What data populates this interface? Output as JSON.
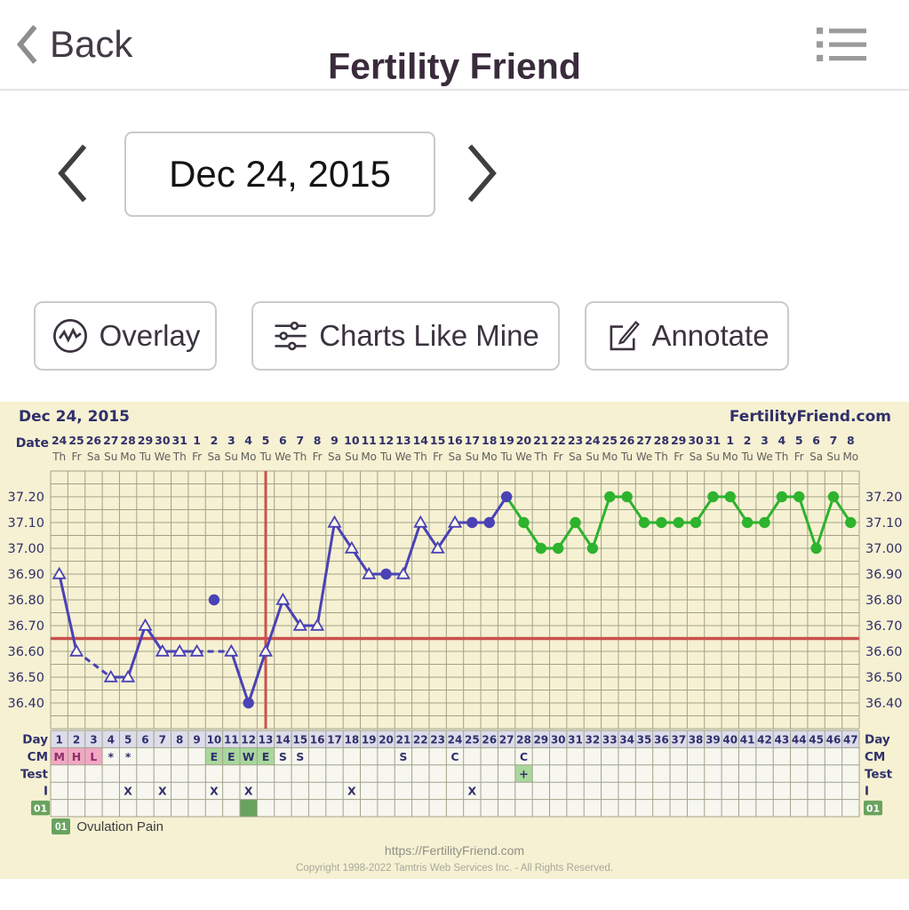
{
  "header": {
    "back_label": "Back",
    "title": "Fertility Friend"
  },
  "date_nav": {
    "value": "Dec 24, 2015"
  },
  "toolbar": {
    "overlay_label": "Overlay",
    "charts_like_mine_label": "Charts Like Mine",
    "annotate_label": "Annotate"
  },
  "footer": {
    "url": "https://FertilityFriend.com",
    "copyright": "Copyright 1998-2022 Tamtris Web Services Inc. - All Rights Reserved."
  },
  "colors": {
    "chart_background": "#f6f1d2",
    "grid": "#a2a28a",
    "axis_text": "#30306b",
    "weekday_text": "#5f5f5f",
    "temp_line_blue": "#4a42b5",
    "temp_line_green": "#2db32d",
    "red_line": "#c9514c",
    "day_row_background": "#dcdceb",
    "cell_background": "#f7f7f0",
    "menses_pink": "#f2a7c3",
    "menses_text": "#8c2f68",
    "fertile_green": "#a9d79c",
    "marker_green": "#68a35e",
    "icon_gray": "#9b9b9b"
  },
  "chart_data": {
    "type": "line",
    "title": "Dec 24, 2015",
    "watermark": "FertilityFriend.com",
    "cycle_days": 47,
    "x_axis": {
      "label": "Date",
      "dates": [
        "24",
        "25",
        "26",
        "27",
        "28",
        "29",
        "30",
        "31",
        "1",
        "2",
        "3",
        "4",
        "5",
        "6",
        "7",
        "8",
        "9",
        "10",
        "11",
        "12",
        "13",
        "14",
        "15",
        "16",
        "17",
        "18",
        "19",
        "20",
        "21",
        "22",
        "23",
        "24",
        "25",
        "26",
        "27",
        "28",
        "29",
        "30",
        "31",
        "1",
        "2",
        "3",
        "4",
        "5",
        "6",
        "7",
        "8"
      ],
      "weekdays": [
        "Th",
        "Fr",
        "Sa",
        "Su",
        "Mo",
        "Tu",
        "We",
        "Th",
        "Fr",
        "Sa",
        "Su",
        "Mo",
        "Tu",
        "We",
        "Th",
        "Fr",
        "Sa",
        "Su",
        "Mo",
        "Tu",
        "We",
        "Th",
        "Fr",
        "Sa",
        "Su",
        "Mo",
        "Tu",
        "We",
        "Th",
        "Fr",
        "Sa",
        "Su",
        "Mo",
        "Tu",
        "We",
        "Th",
        "Fr",
        "Sa",
        "Su",
        "Mo",
        "Tu",
        "We",
        "Th",
        "Fr",
        "Sa",
        "Su",
        "Mo"
      ]
    },
    "y_axis": {
      "unit": "C",
      "ticks": [
        "37.20",
        "37.10",
        "37.00",
        "36.90",
        "36.80",
        "36.70",
        "36.60",
        "36.50",
        "36.40"
      ],
      "range": [
        36.3,
        37.3
      ]
    },
    "temperatures": [
      {
        "day": 1,
        "value": 36.9,
        "marker": "triangle"
      },
      {
        "day": 2,
        "value": 36.6,
        "marker": "triangle"
      },
      {
        "day": 4,
        "value": 36.5,
        "marker": "triangle"
      },
      {
        "day": 5,
        "value": 36.5,
        "marker": "triangle"
      },
      {
        "day": 6,
        "value": 36.7,
        "marker": "triangle"
      },
      {
        "day": 7,
        "value": 36.6,
        "marker": "triangle"
      },
      {
        "day": 8,
        "value": 36.6,
        "marker": "triangle"
      },
      {
        "day": 9,
        "value": 36.6,
        "marker": "triangle"
      },
      {
        "day": 11,
        "value": 36.6,
        "marker": "triangle"
      },
      {
        "day": 12,
        "value": 36.4,
        "marker": "dot"
      },
      {
        "day": 13,
        "value": 36.6,
        "marker": "triangle"
      },
      {
        "day": 14,
        "value": 36.8,
        "marker": "triangle"
      },
      {
        "day": 15,
        "value": 36.7,
        "marker": "triangle"
      },
      {
        "day": 16,
        "value": 36.7,
        "marker": "triangle"
      },
      {
        "day": 17,
        "value": 37.1,
        "marker": "triangle"
      },
      {
        "day": 18,
        "value": 37.0,
        "marker": "triangle"
      },
      {
        "day": 19,
        "value": 36.9,
        "marker": "triangle"
      },
      {
        "day": 20,
        "value": 36.9,
        "marker": "dot"
      },
      {
        "day": 21,
        "value": 36.9,
        "marker": "triangle"
      },
      {
        "day": 22,
        "value": 37.1,
        "marker": "triangle"
      },
      {
        "day": 23,
        "value": 37.0,
        "marker": "triangle"
      },
      {
        "day": 24,
        "value": 37.1,
        "marker": "triangle"
      },
      {
        "day": 25,
        "value": 37.1,
        "marker": "dot"
      },
      {
        "day": 26,
        "value": 37.1,
        "marker": "dot"
      },
      {
        "day": 27,
        "value": 37.2,
        "marker": "dot"
      },
      {
        "day": 28,
        "value": 37.1,
        "marker": "dot"
      },
      {
        "day": 29,
        "value": 37.0,
        "marker": "dot"
      },
      {
        "day": 30,
        "value": 37.0,
        "marker": "dot"
      },
      {
        "day": 31,
        "value": 37.1,
        "marker": "dot"
      },
      {
        "day": 32,
        "value": 37.0,
        "marker": "dot"
      },
      {
        "day": 33,
        "value": 37.2,
        "marker": "dot"
      },
      {
        "day": 34,
        "value": 37.2,
        "marker": "dot"
      },
      {
        "day": 35,
        "value": 37.1,
        "marker": "dot"
      },
      {
        "day": 36,
        "value": 37.1,
        "marker": "dot"
      },
      {
        "day": 37,
        "value": 37.1,
        "marker": "dot"
      },
      {
        "day": 38,
        "value": 37.1,
        "marker": "dot"
      },
      {
        "day": 39,
        "value": 37.2,
        "marker": "dot"
      },
      {
        "day": 40,
        "value": 37.2,
        "marker": "dot"
      },
      {
        "day": 41,
        "value": 37.1,
        "marker": "dot"
      },
      {
        "day": 42,
        "value": 37.1,
        "marker": "dot"
      },
      {
        "day": 43,
        "value": 37.2,
        "marker": "dot"
      },
      {
        "day": 44,
        "value": 37.2,
        "marker": "dot"
      },
      {
        "day": 45,
        "value": 37.0,
        "marker": "dot"
      },
      {
        "day": 46,
        "value": 37.2,
        "marker": "dot"
      },
      {
        "day": 47,
        "value": 37.1,
        "marker": "dot"
      }
    ],
    "detached_point": {
      "day": 10,
      "value": 36.8
    },
    "coverline": 36.65,
    "ovulation_day_line": 13,
    "pregnancy_color_start_day": 28,
    "day_axis_label": "Day",
    "day_numbers": [
      1,
      2,
      3,
      4,
      5,
      6,
      7,
      8,
      9,
      10,
      11,
      12,
      13,
      14,
      15,
      16,
      17,
      18,
      19,
      20,
      21,
      22,
      23,
      24,
      25,
      26,
      27,
      28,
      29,
      30,
      31,
      32,
      33,
      34,
      35,
      36,
      37,
      38,
      39,
      40,
      41,
      42,
      43,
      44,
      45,
      46,
      47
    ],
    "rows": {
      "cm": {
        "label": "CM",
        "entries": [
          {
            "day": 1,
            "text": "M",
            "bg": "menses"
          },
          {
            "day": 2,
            "text": "H",
            "bg": "menses"
          },
          {
            "day": 3,
            "text": "L",
            "bg": "menses"
          },
          {
            "day": 4,
            "text": "*"
          },
          {
            "day": 5,
            "text": "*"
          },
          {
            "day": 10,
            "text": "E",
            "bg": "fertile"
          },
          {
            "day": 11,
            "text": "E",
            "bg": "fertile"
          },
          {
            "day": 12,
            "text": "W",
            "bg": "fertile"
          },
          {
            "day": 13,
            "text": "E",
            "bg": "fertile"
          },
          {
            "day": 14,
            "text": "S"
          },
          {
            "day": 15,
            "text": "S"
          },
          {
            "day": 21,
            "text": "S"
          },
          {
            "day": 24,
            "text": "C"
          },
          {
            "day": 28,
            "text": "C"
          }
        ]
      },
      "test": {
        "label": "Test",
        "entries": [
          {
            "day": 28,
            "text": "+",
            "highlight": true
          }
        ]
      },
      "intercourse": {
        "label": "I",
        "symbol": "X",
        "days": [
          5,
          7,
          10,
          12,
          18,
          25
        ]
      },
      "custom": {
        "label": "01",
        "filled_days": [
          12
        ]
      }
    },
    "legend": {
      "code": "01",
      "label": "Ovulation Pain"
    }
  }
}
